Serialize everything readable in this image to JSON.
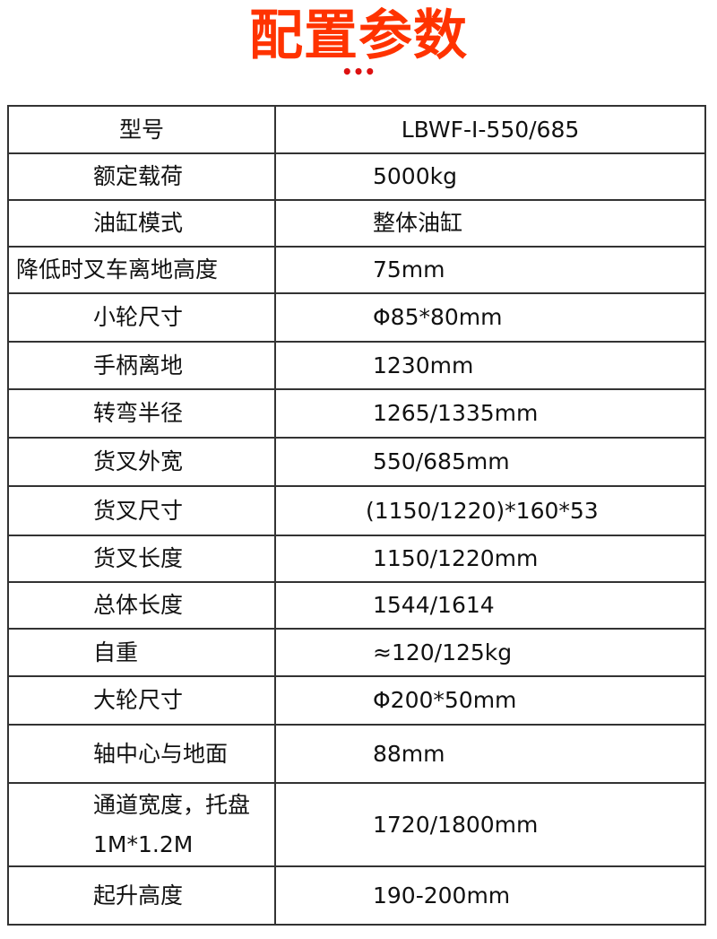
{
  "title": "配置参数",
  "title_color": "#ff3300",
  "dots": "•••",
  "dots_color": "#dd1111",
  "rows": [
    {
      "label": "型号",
      "value": "LBWF-Ⅰ-550/685"
    },
    {
      "label": "额定载荷",
      "value": "5000kg"
    },
    {
      "label": "油缸模式",
      "value": "整体油缸"
    },
    {
      "label": "降低时叉车离地高度",
      "value": "75mm"
    },
    {
      "label": "小轮尺寸",
      "value": "Φ85*80mm"
    },
    {
      "label": "手柄离地",
      "value": "1230mm"
    },
    {
      "label": "转弯半径",
      "value": "1265/1335mm"
    },
    {
      "label": "货叉外宽",
      "value": "550/685mm"
    },
    {
      "label": "货叉尺寸",
      "value": "(1150/1220)*160*53"
    },
    {
      "label": "货叉长度",
      "value": "1150/1220mm"
    },
    {
      "label": "总体长度",
      "value": "1544/1614"
    },
    {
      "label": "自重",
      "value": "≈120/125kg"
    },
    {
      "label": "大轮尺寸",
      "value": "Φ200*50mm"
    },
    {
      "label": "轴中心与地面",
      "value": "88mm"
    },
    {
      "label": "通道宽度，托盘1M*1.2M",
      "value": "1720/1800mm"
    },
    {
      "label": "起升高度",
      "value": "190-200mm"
    }
  ]
}
